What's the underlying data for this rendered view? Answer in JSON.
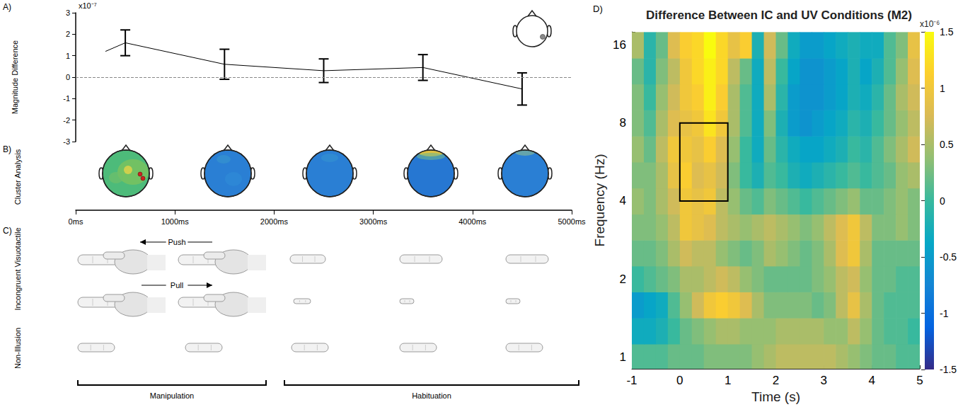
{
  "chart_data": [
    {
      "panel": "A)",
      "type": "line",
      "y_label": "Magnitude Difference",
      "y_scale_label": "x10⁻⁷",
      "x": [
        300,
        500,
        1500,
        2500,
        3500,
        4500
      ],
      "values": [
        1.2,
        1.6,
        0.6,
        0.3,
        0.45,
        -0.55
      ],
      "errors": [
        null,
        0.6,
        0.7,
        0.55,
        0.6,
        0.75
      ],
      "reference_line": 0,
      "color": "#000000",
      "line_style": "solid",
      "marker": "none",
      "xlim": [
        0,
        5000
      ],
      "xticks": [
        {
          "value": 0,
          "label": "0ms"
        },
        {
          "value": 1000,
          "label": "1000ms"
        },
        {
          "value": 2000,
          "label": "2000ms"
        },
        {
          "value": 3000,
          "label": "3000ms"
        },
        {
          "value": 4000,
          "label": "4000ms"
        },
        {
          "value": 5000,
          "label": "5000ms"
        }
      ],
      "ylim": [
        -3,
        3
      ],
      "yticks": [
        -3,
        -2,
        -1,
        0,
        1,
        2,
        3
      ]
    },
    {
      "panel": "D)",
      "type": "heatmap",
      "title": "Difference Between IC and UV Conditions (M2)",
      "x_label": "Time (s)",
      "y_label": "Frequency (Hz)",
      "log": "y",
      "x": [
        -0.875,
        -0.625,
        -0.375,
        -0.125,
        0.125,
        0.375,
        0.625,
        0.875,
        1.125,
        1.375,
        1.625,
        1.875,
        2.125,
        2.375,
        2.625,
        2.875,
        3.125,
        3.375,
        3.625,
        3.875,
        4.125,
        4.375,
        4.625,
        4.875
      ],
      "y": [
        1,
        1.26,
        1.59,
        2,
        2.52,
        3.17,
        4,
        5.04,
        6.35,
        8,
        10.1,
        12.7,
        16
      ],
      "cells": [
        [
          0.1,
          0.1,
          0.1,
          0.2,
          0.2,
          0.2,
          0.3,
          0.3,
          0.3,
          0.3,
          0.4,
          0.5,
          0.6,
          0.6,
          0.6,
          0.6,
          0.6,
          0.5,
          0.4,
          0.3,
          0.2,
          0.2,
          0.1,
          0.1
        ],
        [
          -0.3,
          -0.3,
          -0.2,
          0.0,
          0.2,
          0.3,
          0.4,
          0.5,
          0.5,
          0.4,
          0.4,
          0.4,
          0.5,
          0.5,
          0.5,
          0.5,
          0.4,
          0.4,
          0.6,
          0.4,
          0.2,
          0.1,
          0.1,
          0.0
        ],
        [
          -0.5,
          -0.4,
          -0.3,
          0.1,
          0.4,
          0.7,
          1.0,
          1.1,
          1.0,
          0.8,
          0.5,
          0.3,
          0.3,
          0.3,
          0.3,
          0.2,
          0.3,
          0.6,
          0.9,
          0.5,
          0.2,
          0.1,
          0.1,
          0.1
        ],
        [
          0.0,
          0.1,
          0.2,
          0.3,
          0.5,
          0.5,
          0.6,
          0.7,
          0.6,
          0.4,
          0.3,
          0.2,
          0.2,
          0.2,
          0.2,
          0.3,
          0.4,
          0.6,
          0.7,
          0.4,
          0.2,
          0.2,
          0.1,
          0.1
        ],
        [
          0.2,
          0.2,
          0.3,
          0.5,
          0.7,
          0.6,
          0.6,
          0.4,
          0.3,
          0.2,
          0.3,
          0.5,
          0.4,
          0.3,
          0.2,
          0.3,
          0.5,
          0.8,
          1.0,
          0.5,
          0.2,
          0.2,
          0.2,
          0.2
        ],
        [
          0.3,
          0.3,
          0.4,
          0.6,
          1.0,
          0.9,
          0.8,
          0.6,
          0.5,
          0.4,
          0.5,
          0.6,
          0.5,
          0.4,
          0.3,
          0.4,
          0.6,
          0.8,
          1.0,
          0.6,
          0.3,
          0.3,
          0.4,
          0.3
        ],
        [
          0.4,
          0.3,
          0.5,
          0.7,
          1.0,
          0.9,
          1.0,
          0.6,
          0.4,
          0.2,
          0.1,
          0.3,
          0.2,
          0.1,
          0.0,
          0.1,
          0.2,
          0.3,
          0.4,
          0.2,
          0.2,
          0.3,
          0.4,
          0.3
        ],
        [
          0.3,
          0.3,
          0.5,
          0.9,
          1.1,
          0.8,
          0.9,
          0.7,
          0.3,
          0.0,
          -0.2,
          0.1,
          0.0,
          -0.2,
          -0.3,
          -0.2,
          -0.1,
          0.0,
          0.1,
          0.0,
          0.1,
          0.2,
          0.4,
          0.5
        ],
        [
          0.4,
          0.2,
          0.6,
          1.0,
          1.0,
          0.9,
          1.1,
          0.8,
          0.4,
          0.0,
          -0.3,
          0.2,
          -0.1,
          -0.3,
          -0.4,
          -0.4,
          -0.3,
          -0.2,
          0.0,
          -0.1,
          0.1,
          0.3,
          0.5,
          0.7
        ],
        [
          0.3,
          0.1,
          0.5,
          0.8,
          0.9,
          1.0,
          1.3,
          1.0,
          0.5,
          0.1,
          -0.3,
          0.3,
          -0.2,
          -0.5,
          -0.6,
          -0.5,
          -0.4,
          -0.3,
          -0.1,
          -0.2,
          0.0,
          0.2,
          0.4,
          0.6
        ],
        [
          0.3,
          0.0,
          0.4,
          0.7,
          1.0,
          1.1,
          1.4,
          1.1,
          0.5,
          0.1,
          -0.3,
          0.5,
          -0.1,
          -0.5,
          -0.6,
          -0.6,
          -0.5,
          -0.4,
          -0.2,
          -0.3,
          -0.1,
          0.2,
          0.5,
          0.7
        ],
        [
          0.2,
          -0.1,
          0.3,
          0.6,
          1.0,
          1.2,
          1.4,
          1.2,
          0.6,
          0.2,
          -0.3,
          0.6,
          0.0,
          -0.4,
          -0.6,
          -0.6,
          -0.5,
          -0.4,
          -0.2,
          -0.4,
          -0.2,
          0.1,
          0.4,
          0.8
        ],
        [
          0.5,
          -0.1,
          0.2,
          0.8,
          1.1,
          1.2,
          1.5,
          1.2,
          0.9,
          1.1,
          -0.2,
          0.7,
          0.2,
          -0.3,
          -0.5,
          -0.5,
          -0.4,
          -0.3,
          -0.2,
          -0.3,
          -0.3,
          0.1,
          0.3,
          0.9
        ]
      ],
      "xlim": [
        -1,
        5
      ],
      "xticks": [
        -1,
        0,
        1,
        2,
        3,
        4,
        5
      ],
      "ylim": [
        0.9,
        18
      ],
      "yticks": [
        1,
        2,
        4,
        8,
        16
      ],
      "colorbar": {
        "range": [
          -1.5,
          1.5
        ],
        "ticks": [
          -1.5,
          -1,
          -0.5,
          0,
          0.5,
          1,
          1.5
        ],
        "scale_label": "x10⁻⁶"
      },
      "box": {
        "x": [
          0,
          1
        ],
        "y": [
          4,
          8
        ],
        "color": "#000000"
      }
    }
  ],
  "figure": {
    "panel_B": {
      "letter": "B)",
      "label": "Cluster Analysis"
    },
    "panel_C": {
      "letter": "C)",
      "rows": [
        "Incongruent Visuotactile",
        "Non-Illusion"
      ],
      "arrows": [
        "Push",
        "Pull"
      ],
      "phases": [
        "Manipulation",
        "Habituation"
      ]
    }
  }
}
